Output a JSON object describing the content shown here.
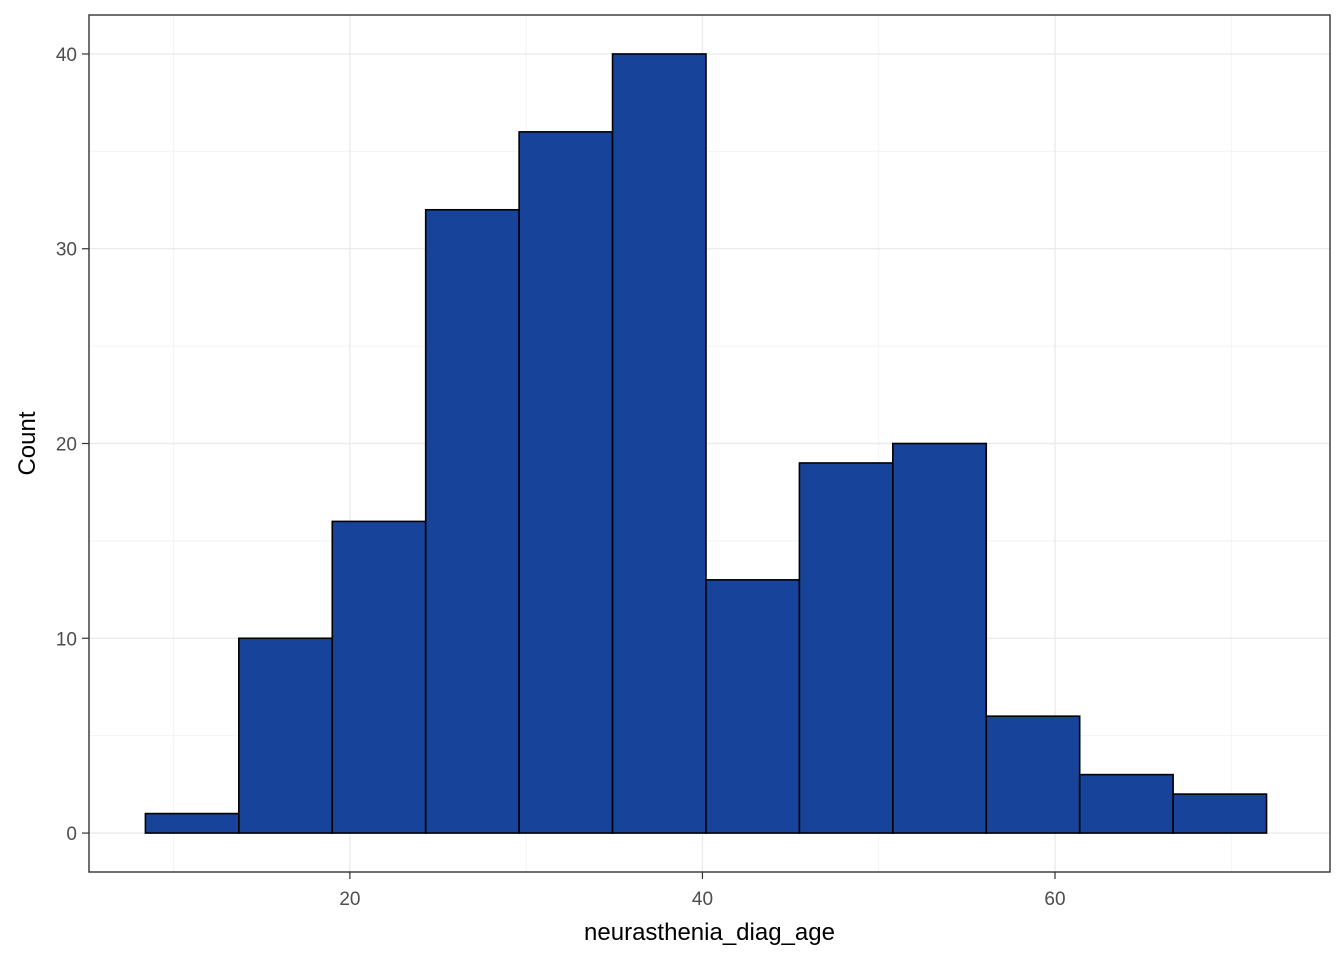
{
  "chart_data": {
    "type": "bar",
    "subtype": "histogram",
    "xlabel": "neurasthenia_diag_age",
    "ylabel": "Count",
    "xlim": [
      5.2,
      75.6
    ],
    "ylim": [
      -2,
      42
    ],
    "x_ticks": [
      20,
      40,
      60
    ],
    "y_ticks": [
      0,
      10,
      20,
      30,
      40
    ],
    "grid": true,
    "fill_color": "#17449A",
    "border_color": "#000000",
    "bins": [
      {
        "x_min": 8.4,
        "x_max": 13.7,
        "count": 1
      },
      {
        "x_min": 13.7,
        "x_max": 19.0,
        "count": 10
      },
      {
        "x_min": 19.0,
        "x_max": 24.3,
        "count": 16
      },
      {
        "x_min": 24.3,
        "x_max": 29.6,
        "count": 32
      },
      {
        "x_min": 29.6,
        "x_max": 34.9,
        "count": 36
      },
      {
        "x_min": 34.9,
        "x_max": 40.2,
        "count": 40
      },
      {
        "x_min": 40.2,
        "x_max": 45.5,
        "count": 13
      },
      {
        "x_min": 45.5,
        "x_max": 50.8,
        "count": 19
      },
      {
        "x_min": 50.8,
        "x_max": 56.1,
        "count": 20
      },
      {
        "x_min": 56.1,
        "x_max": 61.4,
        "count": 6
      },
      {
        "x_min": 61.4,
        "x_max": 66.7,
        "count": 3
      },
      {
        "x_min": 66.7,
        "x_max": 72.0,
        "count": 2
      }
    ]
  }
}
